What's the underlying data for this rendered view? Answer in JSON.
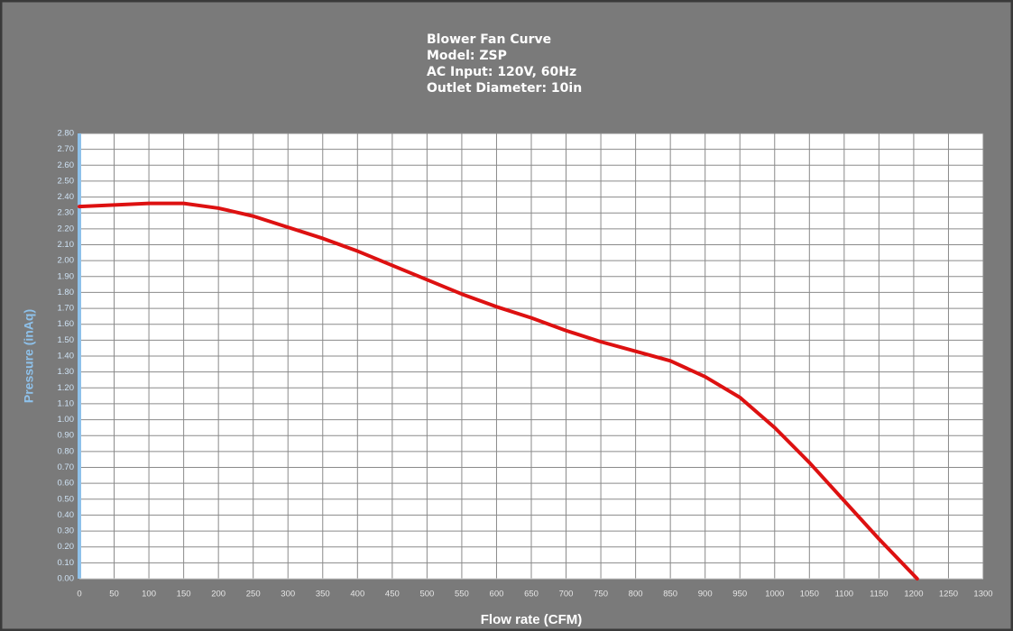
{
  "chart_data": {
    "type": "line",
    "title_lines": [
      "Blower Fan Curve",
      "Model: ZSP",
      "AC Input: 120V, 60Hz",
      "Outlet Diameter: 10in"
    ],
    "x_label": "Flow rate (CFM)",
    "y_label": "Pressure (inAq)",
    "grid": true,
    "x": [
      0,
      50,
      100,
      150,
      200,
      250,
      300,
      350,
      400,
      450,
      500,
      550,
      600,
      650,
      700,
      750,
      800,
      850,
      900,
      950,
      1000,
      1050,
      1100,
      1150,
      1205
    ],
    "series": [
      {
        "name": "ZSP",
        "color": "#dd1111",
        "values": [
          2.34,
          2.35,
          2.36,
          2.36,
          2.33,
          2.28,
          2.21,
          2.14,
          2.06,
          1.97,
          1.88,
          1.79,
          1.71,
          1.64,
          1.56,
          1.49,
          1.43,
          1.37,
          1.27,
          1.14,
          0.95,
          0.73,
          0.49,
          0.25,
          0
        ]
      }
    ],
    "xlim": [
      0,
      1300
    ],
    "xticks": [
      0,
      50,
      100,
      150,
      200,
      250,
      300,
      350,
      400,
      450,
      500,
      550,
      600,
      650,
      700,
      750,
      800,
      850,
      900,
      950,
      1000,
      1050,
      1100,
      1150,
      1200,
      1250,
      1300
    ],
    "ylim": [
      0,
      2.8
    ],
    "yticks": [
      {
        "value": 0,
        "label": "0.00"
      },
      {
        "value": 0.1,
        "label": "0.10"
      },
      {
        "value": 0.2,
        "label": "0.20"
      },
      {
        "value": 0.3,
        "label": "0.30"
      },
      {
        "value": 0.4,
        "label": "0.40"
      },
      {
        "value": 0.5,
        "label": "0.50"
      },
      {
        "value": 0.6,
        "label": "0.60"
      },
      {
        "value": 0.7,
        "label": "0.70"
      },
      {
        "value": 0.8,
        "label": "0.80"
      },
      {
        "value": 0.9,
        "label": "0.90"
      },
      {
        "value": 1,
        "label": "1.00"
      },
      {
        "value": 1.1,
        "label": "1.10"
      },
      {
        "value": 1.2,
        "label": "1.20"
      },
      {
        "value": 1.3,
        "label": "1.30"
      },
      {
        "value": 1.4,
        "label": "1.40"
      },
      {
        "value": 1.5,
        "label": "1.50"
      },
      {
        "value": 1.6,
        "label": "1.60"
      },
      {
        "value": 1.7,
        "label": "1.70"
      },
      {
        "value": 1.8,
        "label": "1.80"
      },
      {
        "value": 1.9,
        "label": "1.90"
      },
      {
        "value": 2,
        "label": "2.00"
      },
      {
        "value": 2.1,
        "label": "2.10"
      },
      {
        "value": 2.2,
        "label": "2.20"
      },
      {
        "value": 2.3,
        "label": "2.30"
      },
      {
        "value": 2.4,
        "label": "2.40"
      },
      {
        "value": 2.5,
        "label": "2.50"
      },
      {
        "value": 2.6,
        "label": "2.60"
      },
      {
        "value": 2.7,
        "label": "2.70"
      },
      {
        "value": 2.8,
        "label": "2.80"
      }
    ]
  }
}
